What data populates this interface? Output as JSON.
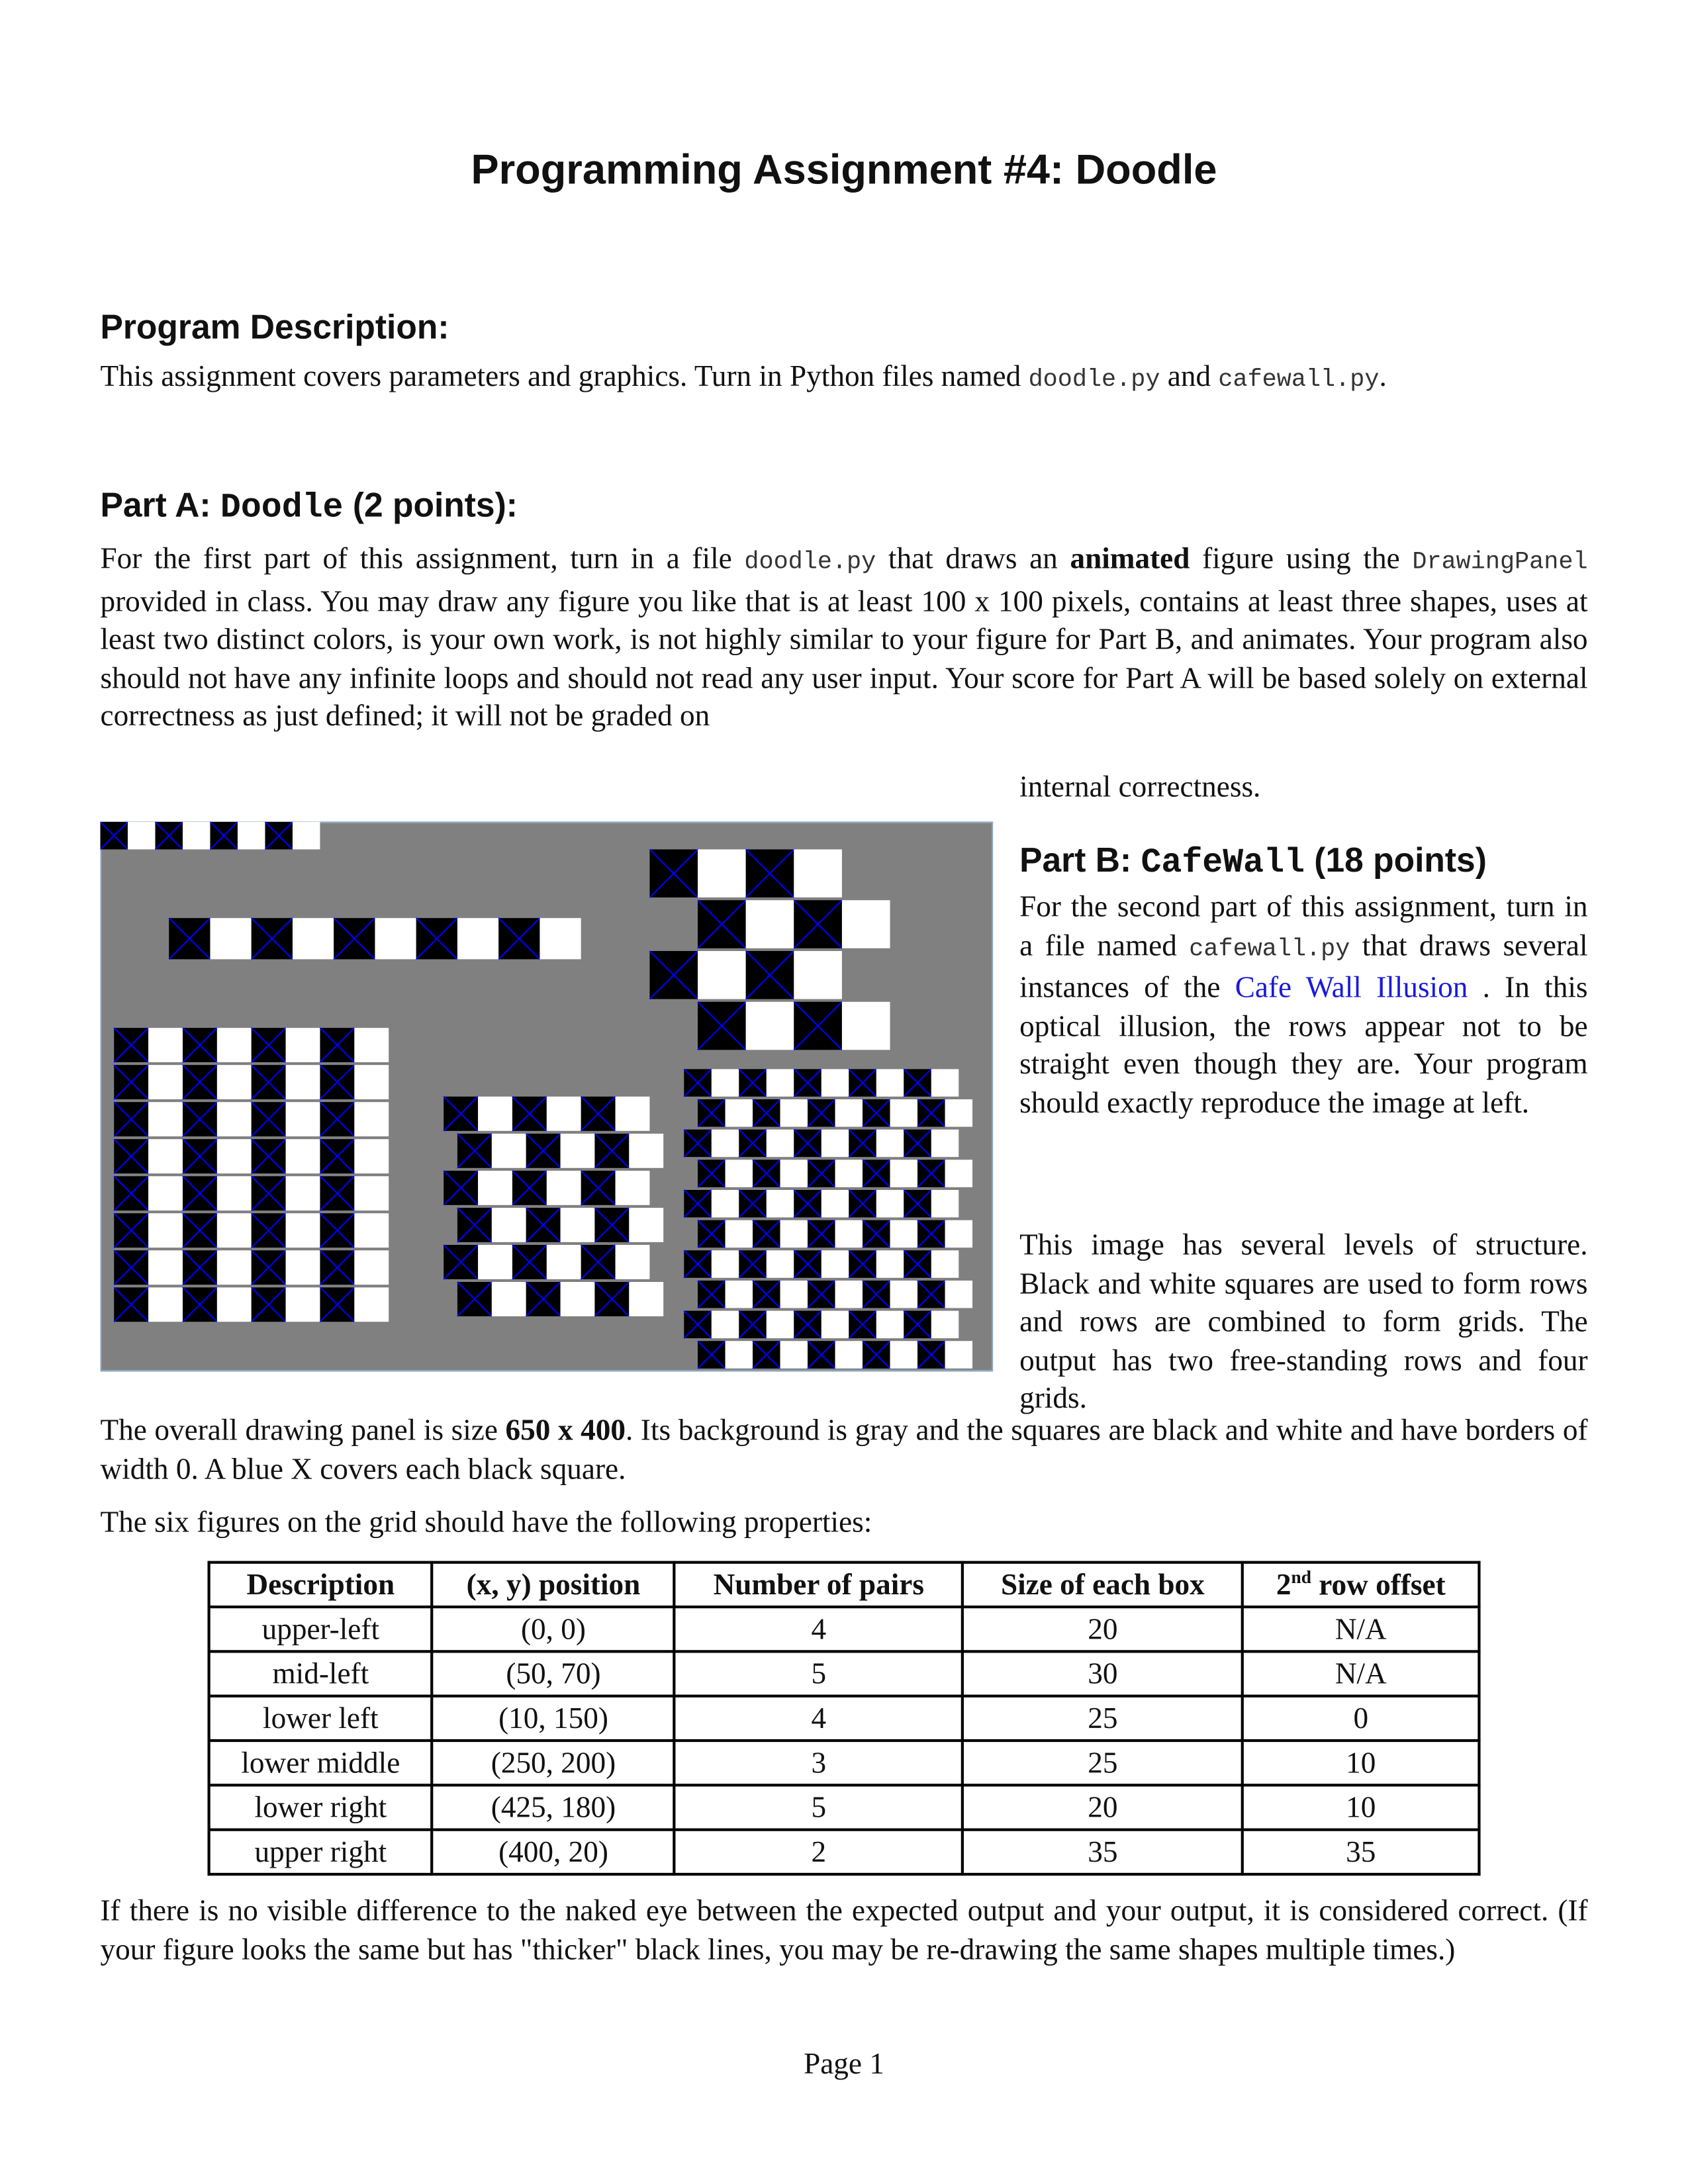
{
  "title": "Programming Assignment #4: Doodle",
  "program_description": {
    "heading": "Program Description:",
    "text_before": "This assignment covers parameters and graphics.  Turn in Python files named ",
    "file1": "doodle.py",
    "and": " and ",
    "file2": "cafewall.py",
    "end": "."
  },
  "part_a": {
    "heading_prefix": "Part A: ",
    "heading_code": "Doodle",
    "heading_suffix": " (2 points):",
    "t1": "For the first part of this assignment, turn in a file ",
    "file": "doodle.py",
    "t2": " that draws an ",
    "bold": "animated",
    "t3": " figure using the ",
    "panel": "DrawingPanel",
    "t4": " provided in class.  You may draw any figure you like that is at least 100 x 100 pixels, contains at least three shapes, uses at least two distinct colors, is your own work, is not highly similar to your figure for Part B, and animates.  Your program also should not have any infinite loops and should not read any user input.  Your score for Part A will be based solely on external correctness as just defined; it will not be graded on",
    "continuation": "internal correctness."
  },
  "part_b": {
    "heading_prefix": "Part B: ",
    "heading_code": "CafeWall",
    "heading_suffix": " (18 points)",
    "t1": "For the second part of this assignment, turn in a file named ",
    "file": "cafewall.py",
    "t2": " that draws several instances of the ",
    "link": "Cafe Wall Illusion",
    "t3": " .  In this optical illusion, the rows appear not to be straight even though they are.   Your program should exactly reproduce the image at left.",
    "p2": "This image has several levels of structure.  Black and white squares are used to form rows and rows are combined to form grids.  The output has two free-standing rows and four grids."
  },
  "panel_text": {
    "t1": "The overall drawing panel is size ",
    "bold": "650 x 400",
    "t2": ".  Its background is gray and the squares are black and white and have borders of width 0.  A blue X covers each black square."
  },
  "table_intro": "The six figures on the grid should have the following properties:",
  "table": {
    "headers": [
      "Description",
      "(x, y) position",
      "Number of pairs",
      "Size of each box",
      "row offset"
    ],
    "header_sup": "2nd",
    "rows": [
      [
        "upper-left",
        "(0, 0)",
        "4",
        "20",
        "N/A"
      ],
      [
        "mid-left",
        "(50, 70)",
        "5",
        "30",
        "N/A"
      ],
      [
        "lower left",
        "(10, 150)",
        "4",
        "25",
        "0"
      ],
      [
        "lower middle",
        "(250, 200)",
        "3",
        "25",
        "10"
      ],
      [
        "lower right",
        "(425, 180)",
        "5",
        "20",
        "10"
      ],
      [
        "upper right",
        "(400, 20)",
        "2",
        "35",
        "35"
      ]
    ]
  },
  "closing": "If there is no visible difference to the naked eye between the expected output and your output, it is considered correct.  (If your figure looks the same but has \"thicker\" black lines, you may be re-drawing the same shapes multiple times.)",
  "footer": "Page 1",
  "colors": {
    "panel_bg": "#808080",
    "x_color": "#0000ff",
    "square_dark": "#000000",
    "square_light": "#ffffff"
  }
}
